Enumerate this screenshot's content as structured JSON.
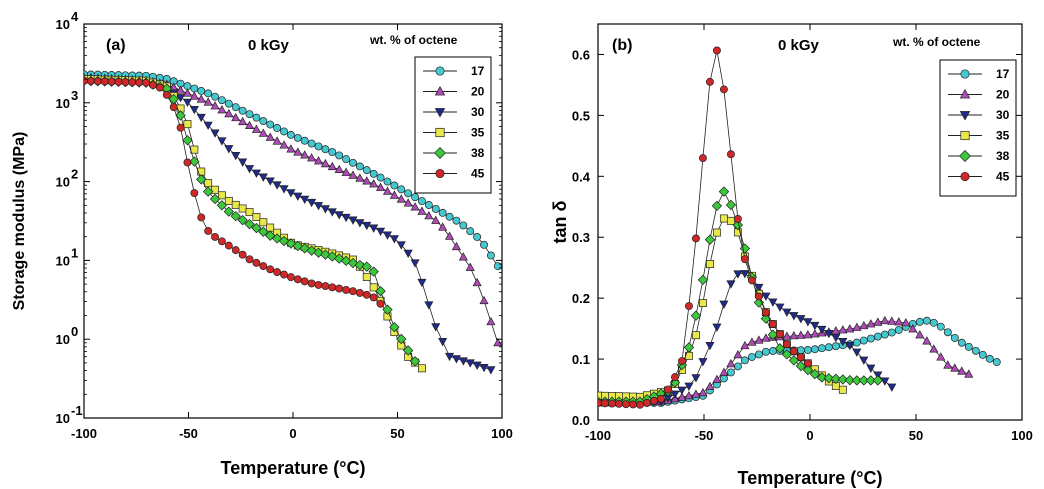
{
  "chart_data": [
    {
      "type": "scatter",
      "panel_label": "(a)",
      "dose_label": "0 kGy",
      "legend_title": "wt. % of octene",
      "xlabel": "Temperature (°C)",
      "ylabel": "Storage modulus (MPa)",
      "xlim": [
        -100,
        100
      ],
      "ylim": [
        0.1,
        10000
      ],
      "yscale": "log",
      "x_ticks": [
        "-100",
        "-50",
        "0",
        "50",
        "100"
      ],
      "y_ticks": [
        {
          "base": "10",
          "exp": "-1"
        },
        {
          "base": "10",
          "exp": "0"
        },
        {
          "base": "10",
          "exp": "1"
        },
        {
          "base": "10",
          "exp": "2"
        },
        {
          "base": "10",
          "exp": "3"
        },
        {
          "base": "10",
          "exp": "4"
        }
      ],
      "legend_position": "top-right",
      "series": [
        {
          "name": "17",
          "color": "#45C8D0",
          "marker": "circle",
          "x_start": -100,
          "x_end": 100,
          "keypoints": [
            [
              -100,
              2300
            ],
            [
              -70,
              2200
            ],
            [
              -60,
              2000
            ],
            [
              -40,
              1300
            ],
            [
              -20,
              700
            ],
            [
              0,
              380
            ],
            [
              20,
              230
            ],
            [
              40,
              120
            ],
            [
              60,
              60
            ],
            [
              80,
              30
            ],
            [
              90,
              18
            ],
            [
              100,
              7
            ]
          ]
        },
        {
          "name": "20",
          "color": "#B04AB8",
          "marker": "triangle-up",
          "x_start": -100,
          "x_end": 98,
          "keypoints": [
            [
              -100,
              2100
            ],
            [
              -70,
              1900
            ],
            [
              -60,
              1700
            ],
            [
              -40,
              1000
            ],
            [
              -20,
              500
            ],
            [
              0,
              250
            ],
            [
              20,
              150
            ],
            [
              40,
              90
            ],
            [
              60,
              45
            ],
            [
              70,
              30
            ],
            [
              75,
              20
            ],
            [
              85,
              8
            ],
            [
              90,
              4
            ],
            [
              98,
              0.9
            ]
          ]
        },
        {
          "name": "30",
          "color": "#1F2A8C",
          "marker": "triangle-down",
          "x_start": -100,
          "x_end": 96,
          "keypoints": [
            [
              -100,
              2000
            ],
            [
              -70,
              1800
            ],
            [
              -60,
              1500
            ],
            [
              -50,
              1000
            ],
            [
              -40,
              500
            ],
            [
              -30,
              250
            ],
            [
              -20,
              140
            ],
            [
              0,
              70
            ],
            [
              20,
              40
            ],
            [
              40,
              25
            ],
            [
              50,
              18
            ],
            [
              58,
              10
            ],
            [
              62,
              5
            ],
            [
              68,
              1.5
            ],
            [
              75,
              0.6
            ],
            [
              85,
              0.5
            ],
            [
              96,
              0.4
            ]
          ]
        },
        {
          "name": "35",
          "color": "#E8E84A",
          "marker": "square",
          "x_start": -100,
          "x_end": 63,
          "keypoints": [
            [
              -100,
              2000
            ],
            [
              -70,
              1900
            ],
            [
              -60,
              1600
            ],
            [
              -55,
              1000
            ],
            [
              -50,
              500
            ],
            [
              -45,
              150
            ],
            [
              -40,
              90
            ],
            [
              -30,
              55
            ],
            [
              -20,
              40
            ],
            [
              -10,
              25
            ],
            [
              0,
              16
            ],
            [
              10,
              14
            ],
            [
              20,
              12
            ],
            [
              30,
              10
            ],
            [
              40,
              4
            ],
            [
              45,
              2
            ],
            [
              50,
              1
            ],
            [
              55,
              0.6
            ],
            [
              63,
              0.4
            ]
          ]
        },
        {
          "name": "38",
          "color": "#3CC83C",
          "marker": "diamond",
          "x_start": -100,
          "x_end": 60,
          "keypoints": [
            [
              -100,
              1900
            ],
            [
              -70,
              1800
            ],
            [
              -60,
              1500
            ],
            [
              -55,
              900
            ],
            [
              -50,
              300
            ],
            [
              -45,
              120
            ],
            [
              -40,
              70
            ],
            [
              -30,
              40
            ],
            [
              -20,
              28
            ],
            [
              -10,
              20
            ],
            [
              0,
              16
            ],
            [
              10,
              13
            ],
            [
              20,
              11
            ],
            [
              30,
              9
            ],
            [
              38,
              8
            ],
            [
              42,
              4
            ],
            [
              48,
              1.5
            ],
            [
              54,
              0.8
            ],
            [
              60,
              0.45
            ]
          ]
        },
        {
          "name": "45",
          "color": "#D02828",
          "marker": "circle",
          "x_start": -100,
          "x_end": 44,
          "keypoints": [
            [
              -100,
              1900
            ],
            [
              -70,
              1800
            ],
            [
              -62,
              1500
            ],
            [
              -55,
              700
            ],
            [
              -50,
              150
            ],
            [
              -45,
              40
            ],
            [
              -40,
              22
            ],
            [
              -30,
              15
            ],
            [
              -20,
              10
            ],
            [
              -10,
              7.5
            ],
            [
              0,
              6
            ],
            [
              10,
              5
            ],
            [
              20,
              4.5
            ],
            [
              30,
              4
            ],
            [
              38,
              3.5
            ],
            [
              44,
              2.5
            ]
          ]
        }
      ]
    },
    {
      "type": "scatter",
      "panel_label": "(b)",
      "dose_label": "0 kGy",
      "legend_title": "wt. % of octene",
      "xlabel": "Temperature (°C)",
      "ylabel": "tan δ",
      "xlim": [
        -100,
        100
      ],
      "ylim": [
        0.0,
        0.65
      ],
      "yscale": "linear",
      "x_ticks": [
        "-100",
        "-50",
        "0",
        "50",
        "100"
      ],
      "y_ticks": [
        "0.0",
        "0.1",
        "0.2",
        "0.3",
        "0.4",
        "0.5",
        "0.6"
      ],
      "legend_position": "top-right",
      "series": [
        {
          "name": "17",
          "color": "#45C8D0",
          "marker": "circle",
          "x_start": -100,
          "x_end": 90,
          "keypoints": [
            [
              -100,
              0.028
            ],
            [
              -70,
              0.028
            ],
            [
              -50,
              0.04
            ],
            [
              -40,
              0.07
            ],
            [
              -30,
              0.1
            ],
            [
              -20,
              0.113
            ],
            [
              0,
              0.115
            ],
            [
              20,
              0.125
            ],
            [
              40,
              0.145
            ],
            [
              50,
              0.16
            ],
            [
              55,
              0.163
            ],
            [
              60,
              0.158
            ],
            [
              70,
              0.13
            ],
            [
              80,
              0.11
            ],
            [
              85,
              0.1
            ],
            [
              90,
              0.092
            ]
          ]
        },
        {
          "name": "20",
          "color": "#B04AB8",
          "marker": "triangle-up",
          "x_start": -100,
          "x_end": 75,
          "keypoints": [
            [
              -100,
              0.028
            ],
            [
              -70,
              0.03
            ],
            [
              -50,
              0.045
            ],
            [
              -40,
              0.08
            ],
            [
              -30,
              0.125
            ],
            [
              -20,
              0.135
            ],
            [
              0,
              0.14
            ],
            [
              20,
              0.15
            ],
            [
              35,
              0.163
            ],
            [
              45,
              0.16
            ],
            [
              55,
              0.13
            ],
            [
              65,
              0.09
            ],
            [
              75,
              0.075
            ]
          ]
        },
        {
          "name": "30",
          "color": "#1F2A8C",
          "marker": "triangle-down",
          "x_start": -100,
          "x_end": 40,
          "keypoints": [
            [
              -100,
              0.028
            ],
            [
              -70,
              0.03
            ],
            [
              -55,
              0.06
            ],
            [
              -45,
              0.14
            ],
            [
              -38,
              0.22
            ],
            [
              -33,
              0.245
            ],
            [
              -28,
              0.235
            ],
            [
              -20,
              0.2
            ],
            [
              -10,
              0.175
            ],
            [
              0,
              0.16
            ],
            [
              10,
              0.14
            ],
            [
              20,
              0.12
            ],
            [
              30,
              0.08
            ],
            [
              40,
              0.05
            ]
          ]
        },
        {
          "name": "35",
          "color": "#E8E84A",
          "marker": "square",
          "x_start": -100,
          "x_end": 18,
          "keypoints": [
            [
              -100,
              0.04
            ],
            [
              -80,
              0.038
            ],
            [
              -65,
              0.05
            ],
            [
              -55,
              0.12
            ],
            [
              -50,
              0.2
            ],
            [
              -45,
              0.3
            ],
            [
              -40,
              0.335
            ],
            [
              -35,
              0.32
            ],
            [
              -30,
              0.26
            ],
            [
              -20,
              0.17
            ],
            [
              -10,
              0.12
            ],
            [
              0,
              0.09
            ],
            [
              10,
              0.06
            ],
            [
              18,
              0.045
            ]
          ]
        },
        {
          "name": "38",
          "color": "#3CC83C",
          "marker": "diamond",
          "x_start": -100,
          "x_end": 35,
          "keypoints": [
            [
              -100,
              0.03
            ],
            [
              -80,
              0.03
            ],
            [
              -65,
              0.05
            ],
            [
              -57,
              0.12
            ],
            [
              -52,
              0.2
            ],
            [
              -47,
              0.3
            ],
            [
              -42,
              0.383
            ],
            [
              -38,
              0.36
            ],
            [
              -32,
              0.3
            ],
            [
              -25,
              0.2
            ],
            [
              -15,
              0.12
            ],
            [
              -5,
              0.09
            ],
            [
              5,
              0.07
            ],
            [
              20,
              0.065
            ],
            [
              35,
              0.065
            ]
          ]
        },
        {
          "name": "45",
          "color": "#D02828",
          "marker": "circle",
          "x_start": -100,
          "x_end": 0,
          "keypoints": [
            [
              -100,
              0.028
            ],
            [
              -80,
              0.025
            ],
            [
              -70,
              0.035
            ],
            [
              -65,
              0.06
            ],
            [
              -60,
              0.1
            ],
            [
              -55,
              0.25
            ],
            [
              -50,
              0.45
            ],
            [
              -46,
              0.6
            ],
            [
              -44,
              0.608
            ],
            [
              -42,
              0.58
            ],
            [
              -39,
              0.5
            ],
            [
              -35,
              0.35
            ],
            [
              -30,
              0.25
            ],
            [
              -20,
              0.17
            ],
            [
              -10,
              0.12
            ],
            [
              0,
              0.09
            ]
          ]
        }
      ]
    }
  ]
}
